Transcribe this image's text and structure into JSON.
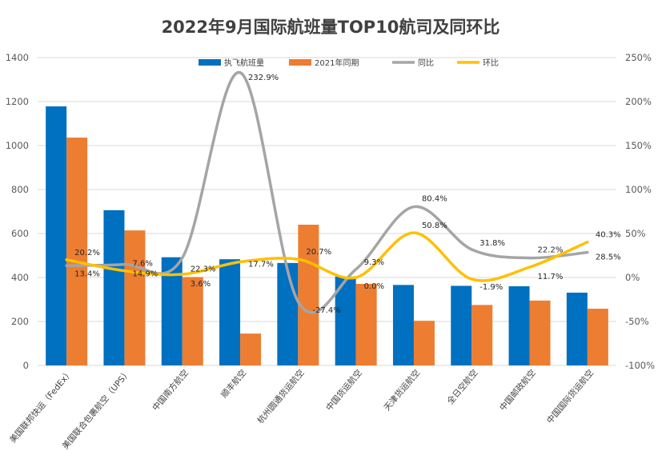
{
  "chart_data": {
    "type": "bar-line-combo",
    "title": "2022年9月国际航班量TOP10航司及同环比",
    "categories": [
      "美国联邦快运（FedEx）",
      "美国联合包裹航空（UPS）",
      "中国南方航空",
      "顺丰航空",
      "杭州圆通货运航空",
      "中国货运航空",
      "天津货运航空",
      "全日空航空",
      "中国邮政航空",
      "中国国际货运航空"
    ],
    "left_axis": {
      "min": 0,
      "max": 1400,
      "ticks": [
        "0",
        "200",
        "400",
        "600",
        "800",
        "1000",
        "1200",
        "1400"
      ]
    },
    "right_axis": {
      "min": -100,
      "max": 250,
      "ticks": [
        "-100%",
        "-50%",
        "0%",
        "50%",
        "100%",
        "150%",
        "200%",
        "250%"
      ]
    },
    "series": [
      {
        "name": "执飞航班量",
        "type": "bar",
        "axis": "left",
        "color": "#0070C0",
        "values": [
          1178,
          706,
          492,
          483,
          466,
          404,
          366,
          362,
          360,
          331
        ]
      },
      {
        "name": "2021年同期",
        "type": "bar",
        "axis": "left",
        "color": "#ED7D31",
        "values": [
          1036,
          614,
          402,
          145,
          640,
          371,
          203,
          275,
          295,
          258
        ]
      },
      {
        "name": "同比",
        "type": "line",
        "axis": "right",
        "color": "#A5A5A5",
        "values": [
          13.4,
          14.9,
          22.3,
          232.9,
          -27.4,
          9.3,
          80.4,
          31.8,
          22.2,
          28.5
        ],
        "labels": [
          "13.4%",
          "14.9%",
          "22.3%",
          "232.9%",
          "-27.4%",
          "9.3%",
          "80.4%",
          "31.8%",
          "22.2%",
          "28.5%"
        ]
      },
      {
        "name": "环比",
        "type": "line",
        "axis": "right",
        "color": "#FFC000",
        "values": [
          20.2,
          7.6,
          3.6,
          17.7,
          20.7,
          0.0,
          50.8,
          -1.9,
          11.7,
          40.3
        ],
        "labels": [
          "20.2%",
          "7.6%",
          "3.6%",
          "17.7%",
          "20.7%",
          "0.0%",
          "50.8%",
          "-1.9%",
          "11.7%",
          "40.3%"
        ]
      }
    ],
    "legend": {
      "position": "top-center"
    },
    "grid": true
  }
}
